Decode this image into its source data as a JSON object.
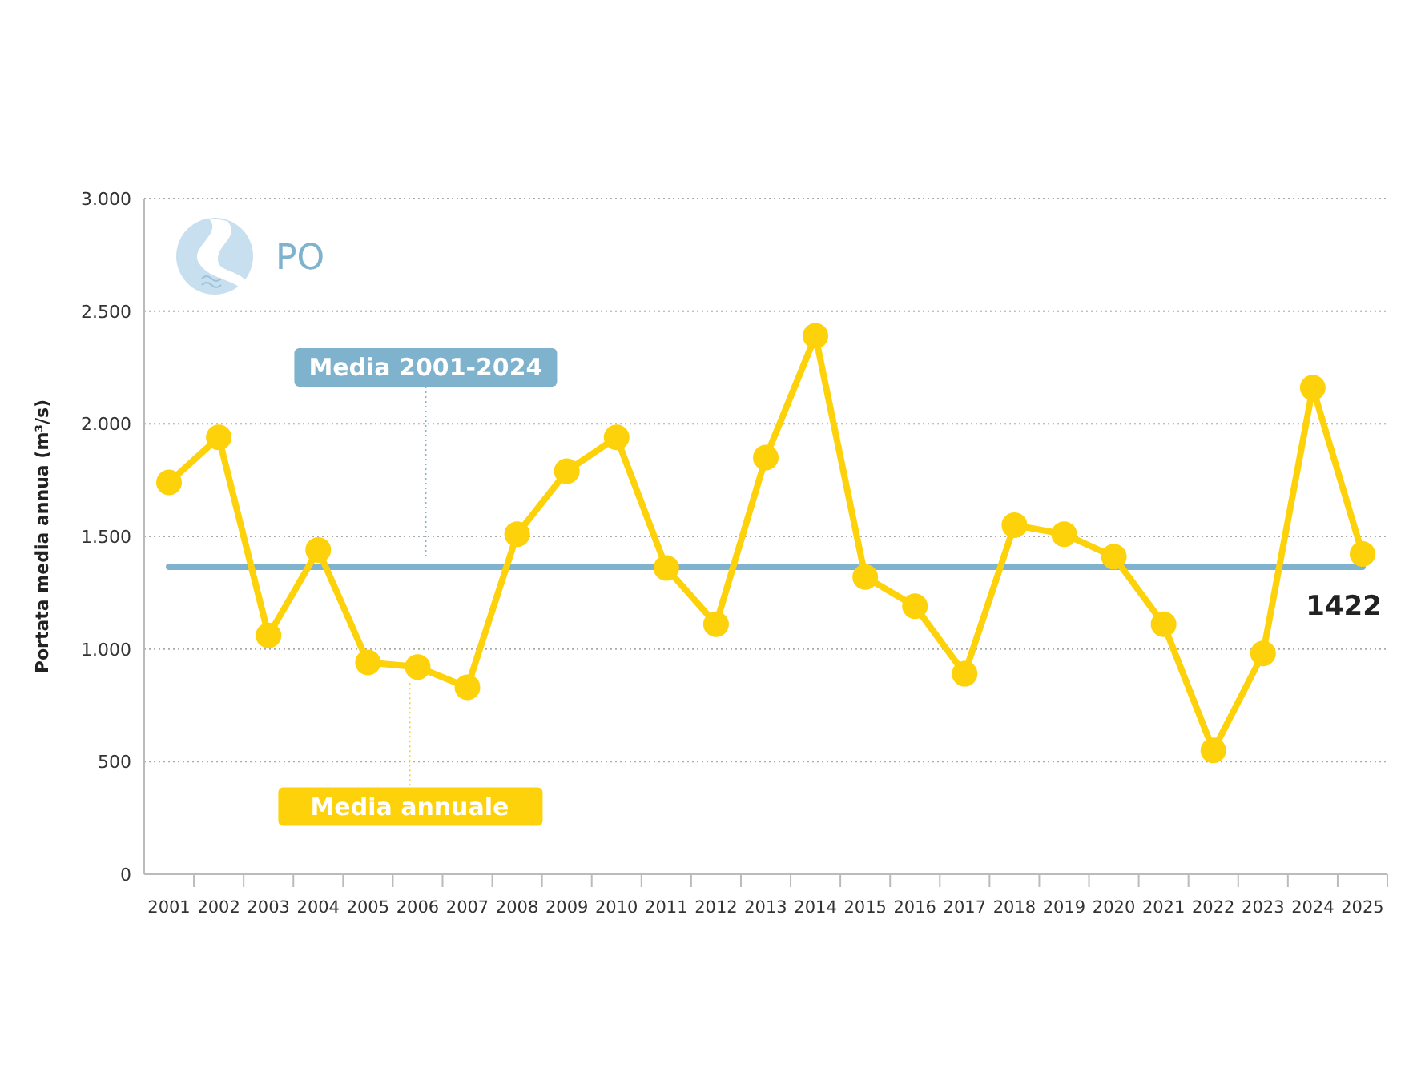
{
  "chart_data": {
    "type": "line",
    "subtitle": "PO",
    "ylabel": "Portata media annua (m³/s)",
    "categories": [
      "2001",
      "2002",
      "2003",
      "2004",
      "2005",
      "2006",
      "2007",
      "2008",
      "2009",
      "2010",
      "2011",
      "2012",
      "2013",
      "2014",
      "2015",
      "2016",
      "2017",
      "2018",
      "2019",
      "2020",
      "2021",
      "2022",
      "2023",
      "2024",
      "2025"
    ],
    "series": [
      {
        "name": "Media annuale",
        "color": "#fdd20a",
        "values": [
          1740,
          1940,
          1060,
          1440,
          940,
          920,
          830,
          1510,
          1790,
          1940,
          1360,
          1110,
          1850,
          2390,
          1320,
          1190,
          890,
          1550,
          1510,
          1410,
          1110,
          550,
          980,
          2160,
          1422
        ],
        "value_labels": [
          null,
          null,
          null,
          null,
          null,
          null,
          null,
          null,
          null,
          null,
          null,
          null,
          null,
          null,
          null,
          null,
          null,
          null,
          null,
          null,
          null,
          null,
          null,
          null,
          "1422"
        ]
      }
    ],
    "ylim": [
      0,
      3000
    ],
    "yticks": [
      0,
      500,
      {
        "value": 1000,
        "label": "1.000"
      },
      {
        "value": 1500,
        "label": "1.500"
      },
      {
        "value": 2000,
        "label": "2.000"
      },
      {
        "value": 2500,
        "label": "2.500"
      },
      {
        "value": 3000,
        "label": "3.000"
      }
    ],
    "ref_lines": [
      {
        "axis": "y",
        "value": 1365,
        "label": "Media 2001-2024",
        "color": "#7fb2cc"
      }
    ],
    "grid": "y",
    "marker": "circle",
    "line_style": "solid"
  }
}
